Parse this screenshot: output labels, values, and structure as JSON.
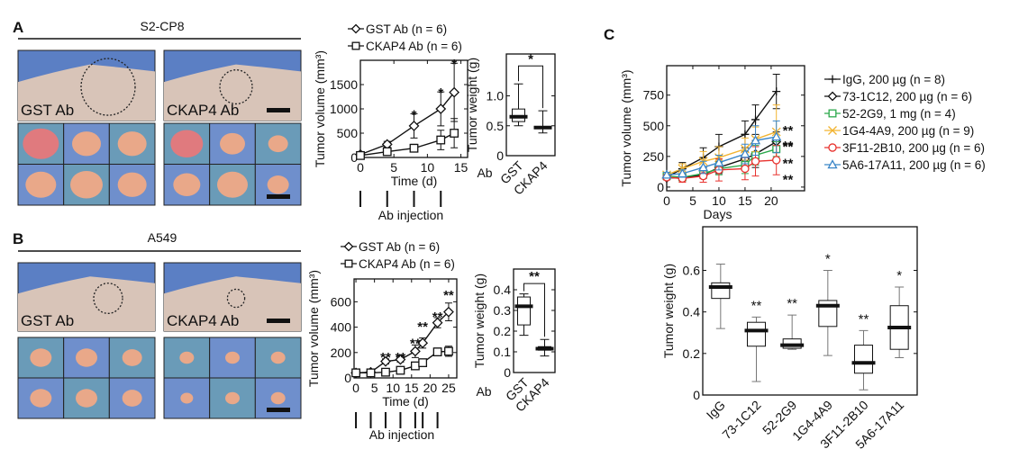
{
  "panels": {
    "A": {
      "letter": "A",
      "title": "S2-CP8",
      "left_label": "GST Ab",
      "right_label": "CKAP4 Ab",
      "injection_label": "Ab injection",
      "ab_prefix": "Ab"
    },
    "B": {
      "letter": "B",
      "title": "A549",
      "left_label": "GST Ab",
      "right_label": "CKAP4 Ab",
      "injection_label": "Ab injection",
      "ab_prefix": "Ab"
    },
    "C": {
      "letter": "C"
    }
  },
  "colors": {
    "photo_background": "#5b7fc4",
    "skin": "#d8c4b8",
    "tumor": "#e9a889",
    "black": "#111111",
    "green": "#2aa84a",
    "orange": "#f2b431",
    "red": "#e8322e",
    "blue": "#3a86c8"
  },
  "chart_data": [
    {
      "id": "A-volume",
      "type": "line",
      "xlabel": "Time (d)",
      "ylabel": "Tumor volume (mm³)",
      "xlim": [
        0,
        16
      ],
      "ylim": [
        0,
        2000
      ],
      "xticks": [
        0,
        5,
        10,
        15
      ],
      "yticks": [
        0,
        500,
        1000,
        1500
      ],
      "injection_days": [
        0,
        4,
        8,
        12
      ],
      "series": [
        {
          "name": "GST Ab (n = 6)",
          "marker": "diamond",
          "color": "#111111",
          "x": [
            0,
            4,
            8,
            12,
            14
          ],
          "y": [
            60,
            270,
            650,
            1000,
            1340
          ],
          "error": [
            10,
            60,
            250,
            350,
            600
          ]
        },
        {
          "name": "CKAP4 Ab (n = 6)",
          "marker": "square",
          "color": "#111111",
          "x": [
            0,
            4,
            8,
            12,
            14
          ],
          "y": [
            40,
            120,
            190,
            360,
            500
          ],
          "error": [
            10,
            40,
            80,
            200,
            300
          ]
        }
      ],
      "annotations": [
        {
          "x": 8,
          "y": 900,
          "text": "*"
        },
        {
          "x": 12,
          "y": 1350,
          "text": "*"
        },
        {
          "x": 14,
          "y": 1940,
          "text": "*"
        }
      ]
    },
    {
      "id": "A-weight",
      "type": "box",
      "ylabel": "Tumor weight (g)",
      "ylim": [
        0,
        1.7
      ],
      "yticks": [
        0,
        0.5,
        1.0
      ],
      "ytick_labels": [
        "0",
        "0.5",
        "1.0"
      ],
      "categories": [
        "GST",
        "CKAP4"
      ],
      "boxes": [
        {
          "min": 0.5,
          "q1": 0.57,
          "median": 0.65,
          "q3": 0.78,
          "max": 1.2
        },
        {
          "min": 0.38,
          "q1": 0.46,
          "median": 0.47,
          "q3": 0.48,
          "max": 0.75
        }
      ],
      "bracket": {
        "from": 0,
        "to": 1,
        "text": "*",
        "level": 1.5
      }
    },
    {
      "id": "B-volume",
      "type": "line",
      "xlabel": "Time (d)",
      "ylabel": "Tumor volume (mm³)",
      "xlim": [
        -0.5,
        27.2
      ],
      "ylim": [
        0,
        780
      ],
      "xticks": [
        0,
        5,
        10,
        15,
        20,
        25
      ],
      "yticks": [
        0,
        200,
        400,
        600
      ],
      "injection_days": [
        0,
        4,
        8,
        12,
        16,
        18,
        22
      ],
      "series": [
        {
          "name": "GST Ab (n = 6)",
          "marker": "diamond",
          "color": "#111111",
          "x": [
            0,
            4,
            8,
            12,
            16,
            18,
            22,
            25
          ],
          "y": [
            40,
            45,
            130,
            145,
            210,
            275,
            435,
            520
          ],
          "error": [
            5,
            10,
            20,
            20,
            50,
            40,
            40,
            70
          ]
        },
        {
          "name": "CKAP4 Ab (n = 6)",
          "marker": "square",
          "color": "#111111",
          "x": [
            0,
            4,
            8,
            12,
            16,
            18,
            22,
            25
          ],
          "y": [
            40,
            40,
            45,
            60,
            95,
            120,
            205,
            210
          ],
          "error": [
            5,
            5,
            10,
            10,
            15,
            15,
            30,
            40
          ]
        }
      ],
      "annotations": [
        {
          "x": 8,
          "y": 170,
          "text": "**"
        },
        {
          "x": 12,
          "y": 170,
          "text": "**"
        },
        {
          "x": 16,
          "y": 280,
          "text": "**"
        },
        {
          "x": 18,
          "y": 340,
          "text": "**"
        },
        {
          "x": 22,
          "y": 490,
          "text": "**"
        },
        {
          "x": 25,
          "y": 660,
          "text": "**"
        }
      ]
    },
    {
      "id": "B-weight",
      "type": "box",
      "ylabel": "Tumor weight (g)",
      "ylim": [
        0,
        0.5
      ],
      "yticks": [
        0,
        0.1,
        0.2,
        0.3,
        0.4
      ],
      "ytick_labels": [
        "0",
        "0.1",
        "0.2",
        "0.3",
        "0.4"
      ],
      "categories": [
        "GST",
        "CKAP4"
      ],
      "boxes": [
        {
          "min": 0.18,
          "q1": 0.23,
          "median": 0.32,
          "q3": 0.365,
          "max": 0.38
        },
        {
          "min": 0.08,
          "q1": 0.108,
          "median": 0.115,
          "q3": 0.125,
          "max": 0.16
        }
      ],
      "bracket": {
        "from": 0,
        "to": 1,
        "text": "**",
        "level": 0.43
      }
    },
    {
      "id": "C-volume",
      "type": "line",
      "xlabel": "Days",
      "ylabel": "Tumor volume (mm³)",
      "xlim": [
        0,
        26.4
      ],
      "ylim": [
        -30,
        990
      ],
      "xticks": [
        0,
        5,
        10,
        15,
        20
      ],
      "yticks": [
        0,
        250,
        500,
        750
      ],
      "series": [
        {
          "name": "IgG, 200 µg (n = 8)",
          "marker": "plus",
          "color": "#111111",
          "x": [
            0,
            3,
            7,
            10,
            15,
            17,
            21
          ],
          "y": [
            80,
            150,
            240,
            330,
            430,
            550,
            780
          ],
          "error": [
            20,
            50,
            80,
            100,
            110,
            120,
            140
          ]
        },
        {
          "name": "73-1C12, 200 µg (n = 6)",
          "marker": "diamond",
          "color": "#111111",
          "x": [
            0,
            3,
            7,
            10,
            15,
            17,
            21
          ],
          "y": [
            75,
            75,
            100,
            160,
            230,
            270,
            370
          ],
          "error": [
            15,
            20,
            30,
            50,
            60,
            110,
            80
          ]
        },
        {
          "name": "52-2G9, 1 mg (n = 4)",
          "marker": "square",
          "color": "#2aa84a",
          "x": [
            0,
            3,
            7,
            10,
            15,
            17,
            21
          ],
          "y": [
            90,
            80,
            110,
            150,
            180,
            260,
            310
          ],
          "error": [
            15,
            20,
            30,
            50,
            70,
            80,
            60
          ]
        },
        {
          "name": "1G4-4A9, 200 µg (n = 9)",
          "marker": "x",
          "color": "#f2b431",
          "x": [
            0,
            3,
            7,
            10,
            15,
            17,
            21
          ],
          "y": [
            100,
            150,
            210,
            240,
            310,
            390,
            450
          ],
          "error": [
            20,
            40,
            80,
            90,
            90,
            100,
            220
          ]
        },
        {
          "name": "3F11-2B10, 200 µg (n = 6)",
          "marker": "circle",
          "color": "#e8322e",
          "x": [
            0,
            3,
            7,
            10,
            15,
            17,
            21
          ],
          "y": [
            80,
            70,
            90,
            140,
            150,
            210,
            220
          ],
          "error": [
            20,
            30,
            50,
            90,
            90,
            120,
            120
          ]
        },
        {
          "name": "5A6-17A11, 200 µg (n = 6)",
          "marker": "triangle",
          "color": "#3a86c8",
          "x": [
            0,
            3,
            7,
            10,
            15,
            17,
            21
          ],
          "y": [
            100,
            110,
            160,
            200,
            270,
            380,
            410
          ],
          "error": [
            20,
            30,
            50,
            60,
            80,
            120,
            130
          ]
        }
      ],
      "annotations": [
        {
          "x": 23.2,
          "y": 470,
          "text": "**",
          "color": "#f2b431"
        },
        {
          "x": 23.2,
          "y": 410,
          "text": "**",
          "color": "#3a86c8"
        },
        {
          "x": 23.2,
          "y": 345,
          "text": "**",
          "color": "#111111"
        },
        {
          "x": 23.2,
          "y": 275,
          "text": "**",
          "color": "#2aa84a"
        },
        {
          "x": 23.2,
          "y": 200,
          "text": "**",
          "color": "#e8322e"
        }
      ],
      "legend": "right"
    },
    {
      "id": "C-weight",
      "type": "box",
      "ylabel": "Tumor weight (g)",
      "ylim": [
        0,
        0.81
      ],
      "yticks": [
        0,
        0.2,
        0.4,
        0.6
      ],
      "ytick_labels": [
        "0",
        "0.2",
        "0.4",
        "0.6"
      ],
      "categories": [
        "IgG",
        "73-1C12",
        "52-2G9",
        "1G4-4A9",
        "3F11-2B10",
        "5A6-17A11"
      ],
      "boxes": [
        {
          "min": 0.32,
          "q1": 0.465,
          "median": 0.52,
          "q3": 0.54,
          "max": 0.63,
          "sig": ""
        },
        {
          "min": 0.065,
          "q1": 0.235,
          "median": 0.31,
          "q3": 0.35,
          "max": 0.375,
          "sig": "**"
        },
        {
          "min": 0.22,
          "q1": 0.225,
          "median": 0.24,
          "q3": 0.27,
          "max": 0.385,
          "sig": "**"
        },
        {
          "min": 0.19,
          "q1": 0.33,
          "median": 0.43,
          "q3": 0.455,
          "max": 0.6,
          "sig": "*"
        },
        {
          "min": 0.025,
          "q1": 0.105,
          "median": 0.155,
          "q3": 0.24,
          "max": 0.31,
          "sig": "**"
        },
        {
          "min": 0.18,
          "q1": 0.22,
          "median": 0.325,
          "q3": 0.43,
          "max": 0.52,
          "sig": "*"
        }
      ]
    }
  ]
}
